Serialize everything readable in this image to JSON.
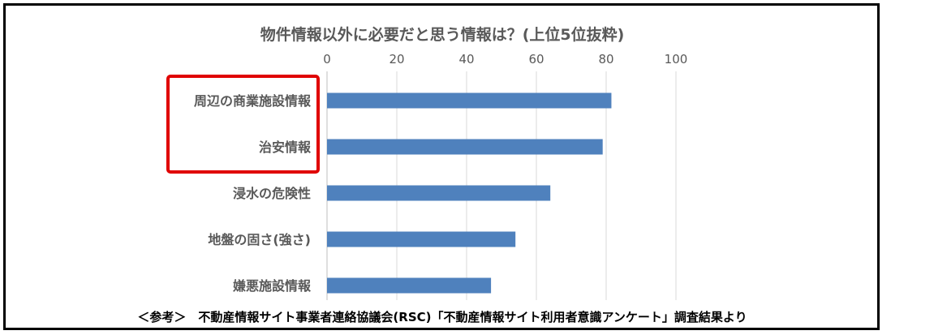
{
  "chart_data": {
    "type": "bar",
    "orientation": "horizontal",
    "title": "物件情報以外に必要だと思う情報は？(上位5位抜粋)",
    "categories": [
      "周辺の商業施設情報",
      "治安情報",
      "浸水の危険性",
      "地盤の固さ(強さ)",
      "嫌悪施設情報"
    ],
    "values": [
      81.5,
      79,
      64,
      54,
      47
    ],
    "xlim": [
      0,
      100
    ],
    "xticks": [
      "0",
      "20",
      "40",
      "60",
      "80",
      "100"
    ],
    "xaxis_position": "top",
    "grid": true,
    "bar_color": "#4f81bd",
    "highlight_color": "#e00000",
    "highlighted_categories": [
      "周辺の商業施設情報",
      "治安情報"
    ]
  },
  "footer": {
    "source": "＜参考＞　不動産情報サイト事業者連絡協議会(RSC)「不動産情報サイト利用者意識アンケート」調査結果より"
  }
}
